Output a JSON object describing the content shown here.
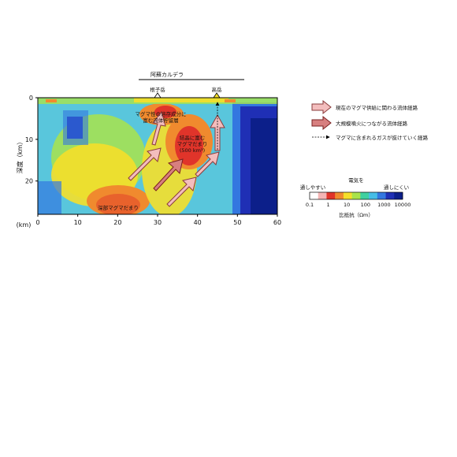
{
  "caldera": {
    "label": "阿蘇カルデラ"
  },
  "peaks": [
    {
      "label": "根子岳",
      "x_km": 30
    },
    {
      "label": "高岳",
      "x_km": 44
    }
  ],
  "axes": {
    "y_label": "深度（km）",
    "x_unit": "(km)",
    "x_ticks": [
      "0",
      "10",
      "20",
      "30",
      "40",
      "50",
      "60"
    ],
    "y_ticks": [
      "0",
      "10",
      "20"
    ],
    "x_range": [
      0,
      60
    ],
    "y_range": [
      0,
      28
    ]
  },
  "annotations": {
    "fluid_reservoir": [
      "マグマ性の溶存成分に",
      "富む流体貯留層"
    ],
    "crystal_mush": [
      "結晶に富む",
      "マグマだまり",
      "(500 km³)"
    ],
    "deep_reservoir": "深部マグマだまり"
  },
  "legend": {
    "items": [
      {
        "label": "現在のマグマ供給に関わる流体経路",
        "color": "#f3bdbd"
      },
      {
        "label": "大規模噴火につながる流体経路",
        "color": "#d77f7f"
      },
      {
        "label": "マグマに含まれるガスが抜けていく経路",
        "color": "#000000"
      }
    ]
  },
  "colorbar": {
    "title": "電気を",
    "left_label": "通しやすい",
    "right_label": "通しにくい",
    "ticks": [
      "0.1",
      "1",
      "10",
      "100",
      "1000",
      "10000"
    ],
    "caption": "比抵抗（Ωm）",
    "colors": [
      "#ffffff",
      "#f4b5b5",
      "#e0342a",
      "#f08a2e",
      "#f5df2a",
      "#a9e34b",
      "#3fd0a0",
      "#46bde6",
      "#3377e0",
      "#1f2fb5",
      "#0c1f8a"
    ]
  },
  "colormap": [
    "#0c1f8a",
    "#1f2fb5",
    "#3377e0",
    "#46bde6",
    "#7fd6c8",
    "#a9e34b",
    "#f5df2a",
    "#f08a2e",
    "#e0342a"
  ]
}
